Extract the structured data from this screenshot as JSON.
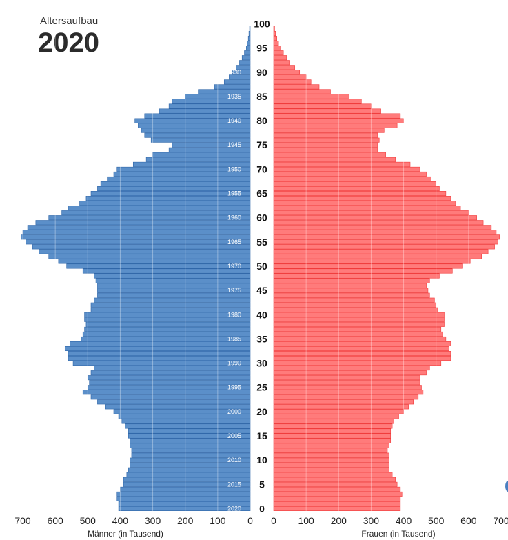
{
  "header": {
    "subtitle": "Altersaufbau",
    "year": "2020"
  },
  "colors": {
    "male": "#5b8fc9",
    "male_edge": "#2f66a8",
    "female": "#ff7b7b",
    "female_edge": "#f03a3a"
  },
  "chart_data": {
    "type": "bar",
    "title": "Altersaufbau 2020",
    "orientation": "horizontal-pyramid",
    "age_axis": {
      "ticks": [
        0,
        5,
        10,
        15,
        20,
        25,
        30,
        35,
        40,
        45,
        50,
        55,
        60,
        65,
        70,
        75,
        80,
        85,
        90,
        95,
        100
      ],
      "range": [
        0,
        100
      ]
    },
    "year_labels": [
      {
        "age": 0,
        "label": "2020"
      },
      {
        "age": 5,
        "label": "2015"
      },
      {
        "age": 10,
        "label": "2010"
      },
      {
        "age": 15,
        "label": "2005"
      },
      {
        "age": 20,
        "label": "2000"
      },
      {
        "age": 25,
        "label": "1995"
      },
      {
        "age": 30,
        "label": "1990"
      },
      {
        "age": 35,
        "label": "1985"
      },
      {
        "age": 40,
        "label": "1980"
      },
      {
        "age": 45,
        "label": "1975"
      },
      {
        "age": 50,
        "label": "1970"
      },
      {
        "age": 55,
        "label": "1965"
      },
      {
        "age": 60,
        "label": "1960"
      },
      {
        "age": 65,
        "label": "1955"
      },
      {
        "age": 70,
        "label": "1950"
      },
      {
        "age": 75,
        "label": "1945"
      },
      {
        "age": 80,
        "label": "1940"
      },
      {
        "age": 85,
        "label": "1935"
      },
      {
        "age": 90,
        "label": "1930"
      }
    ],
    "value_ticks": [
      0,
      100,
      200,
      300,
      400,
      500,
      600,
      700
    ],
    "xlim": [
      0,
      700
    ],
    "male_axis_label": "Männer (in Tausend)",
    "female_axis_label": "Frauen (in Tausend)",
    "series": [
      {
        "name": "Männer",
        "side": "left",
        "values": [
          405,
          405,
          410,
          410,
          400,
          390,
          390,
          380,
          375,
          370,
          370,
          365,
          365,
          370,
          370,
          375,
          375,
          385,
          395,
          405,
          420,
          445,
          470,
          490,
          515,
          500,
          495,
          500,
          490,
          480,
          545,
          560,
          560,
          570,
          555,
          520,
          515,
          510,
          505,
          510,
          510,
          490,
          490,
          480,
          470,
          470,
          470,
          475,
          480,
          515,
          565,
          590,
          620,
          650,
          670,
          690,
          705,
          700,
          685,
          660,
          620,
          580,
          560,
          525,
          505,
          490,
          470,
          460,
          440,
          420,
          410,
          360,
          320,
          300,
          250,
          240,
          305,
          325,
          335,
          345,
          355,
          325,
          280,
          250,
          240,
          200,
          160,
          110,
          80,
          65,
          55,
          43,
          33,
          25,
          18,
          12,
          9,
          6,
          4,
          2
        ]
      },
      {
        "name": "Frauen",
        "side": "right",
        "values": [
          390,
          390,
          390,
          395,
          390,
          380,
          375,
          365,
          355,
          355,
          355,
          355,
          350,
          355,
          360,
          360,
          360,
          365,
          370,
          385,
          400,
          415,
          430,
          445,
          460,
          455,
          450,
          450,
          470,
          480,
          515,
          545,
          545,
          540,
          545,
          530,
          520,
          515,
          525,
          525,
          525,
          505,
          500,
          495,
          480,
          475,
          470,
          480,
          510,
          550,
          580,
          605,
          640,
          660,
          680,
          690,
          695,
          685,
          670,
          645,
          625,
          600,
          575,
          560,
          545,
          530,
          510,
          500,
          485,
          470,
          450,
          420,
          375,
          345,
          320,
          320,
          325,
          320,
          340,
          380,
          400,
          390,
          330,
          300,
          270,
          230,
          175,
          140,
          115,
          100,
          80,
          65,
          50,
          40,
          30,
          20,
          15,
          10,
          6,
          3
        ]
      }
    ]
  }
}
